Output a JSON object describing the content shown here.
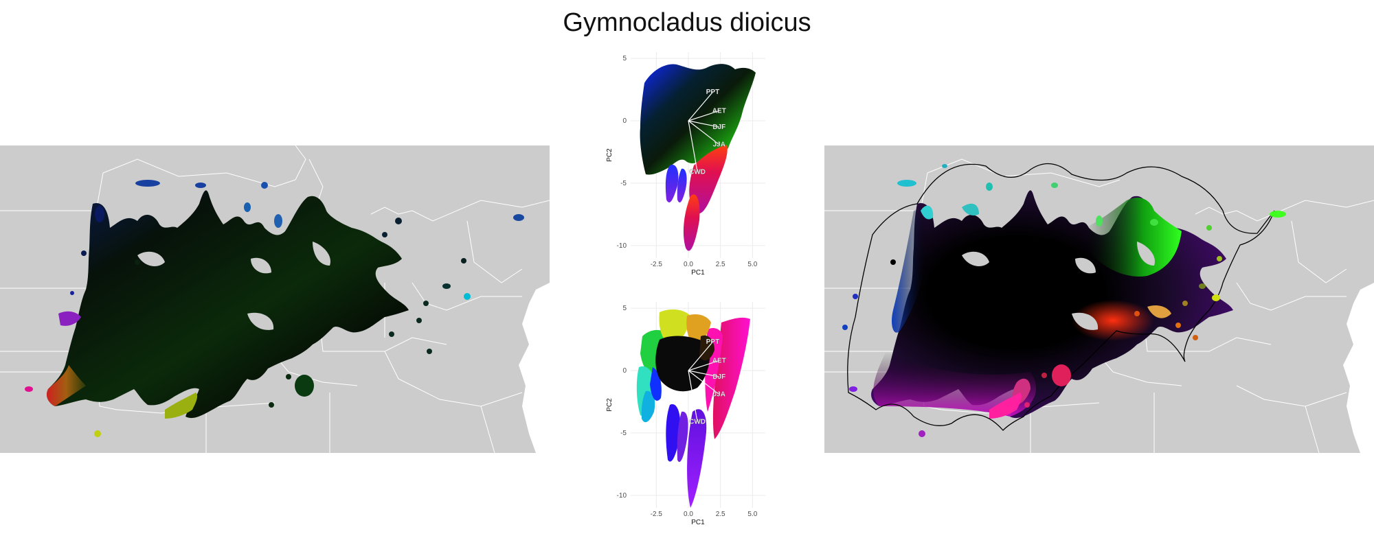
{
  "title": "Gymnocladus dioicus",
  "colors": {
    "map_background": "#cccccc",
    "state_lines": "#ffffff",
    "range_dark": "#050a05",
    "panel_background": "#ffffff",
    "grid": "#ebebeb",
    "loading_arrow": "#ffffff",
    "hull_outline": "#000000"
  },
  "chart_data": [
    {
      "type": "map",
      "panel": "left",
      "description_key": "observed climate color map"
    },
    {
      "type": "scatter",
      "panel": "pca-top",
      "xlabel": "PC1",
      "ylabel": "PC2",
      "xlim": [
        -4.5,
        6
      ],
      "ylim": [
        -11,
        5.5
      ],
      "xticks": [
        -2.5,
        0.0,
        2.5,
        5.0
      ],
      "xtick_labels": [
        "-2.5",
        "0.0",
        "2.5",
        "5.0"
      ],
      "yticks": [
        5,
        0,
        -5,
        -10
      ],
      "ytick_labels": [
        "5",
        "0",
        "-5",
        "-10"
      ],
      "grid": true,
      "loadings": [
        {
          "label": "PPT",
          "x": 1.9,
          "y": 2.3
        },
        {
          "label": "AET",
          "x": 2.4,
          "y": 0.8
        },
        {
          "label": "DJF",
          "x": 2.4,
          "y": -0.5
        },
        {
          "label": "JJA",
          "x": 2.4,
          "y": -1.9
        },
        {
          "label": "CWD",
          "x": 0.7,
          "y": -4.1
        }
      ]
    },
    {
      "type": "scatter",
      "panel": "pca-bottom",
      "xlabel": "PC1",
      "ylabel": "PC2",
      "xlim": [
        -4.5,
        6
      ],
      "ylim": [
        -11,
        5.5
      ],
      "xticks": [
        -2.5,
        0.0,
        2.5,
        5.0
      ],
      "xtick_labels": [
        "-2.5",
        "0.0",
        "2.5",
        "5.0"
      ],
      "yticks": [
        5,
        0,
        -5,
        -10
      ],
      "ytick_labels": [
        "5",
        "0",
        "-5",
        "-10"
      ],
      "grid": true,
      "loadings": [
        {
          "label": "PPT",
          "x": 1.9,
          "y": 2.3
        },
        {
          "label": "AET",
          "x": 2.4,
          "y": 0.8
        },
        {
          "label": "DJF",
          "x": 2.4,
          "y": -0.5
        },
        {
          "label": "JJA",
          "x": 2.4,
          "y": -1.9
        },
        {
          "label": "CWD",
          "x": 0.7,
          "y": -4.1
        }
      ]
    },
    {
      "type": "map",
      "panel": "right",
      "description_key": "hull climate color map"
    }
  ]
}
